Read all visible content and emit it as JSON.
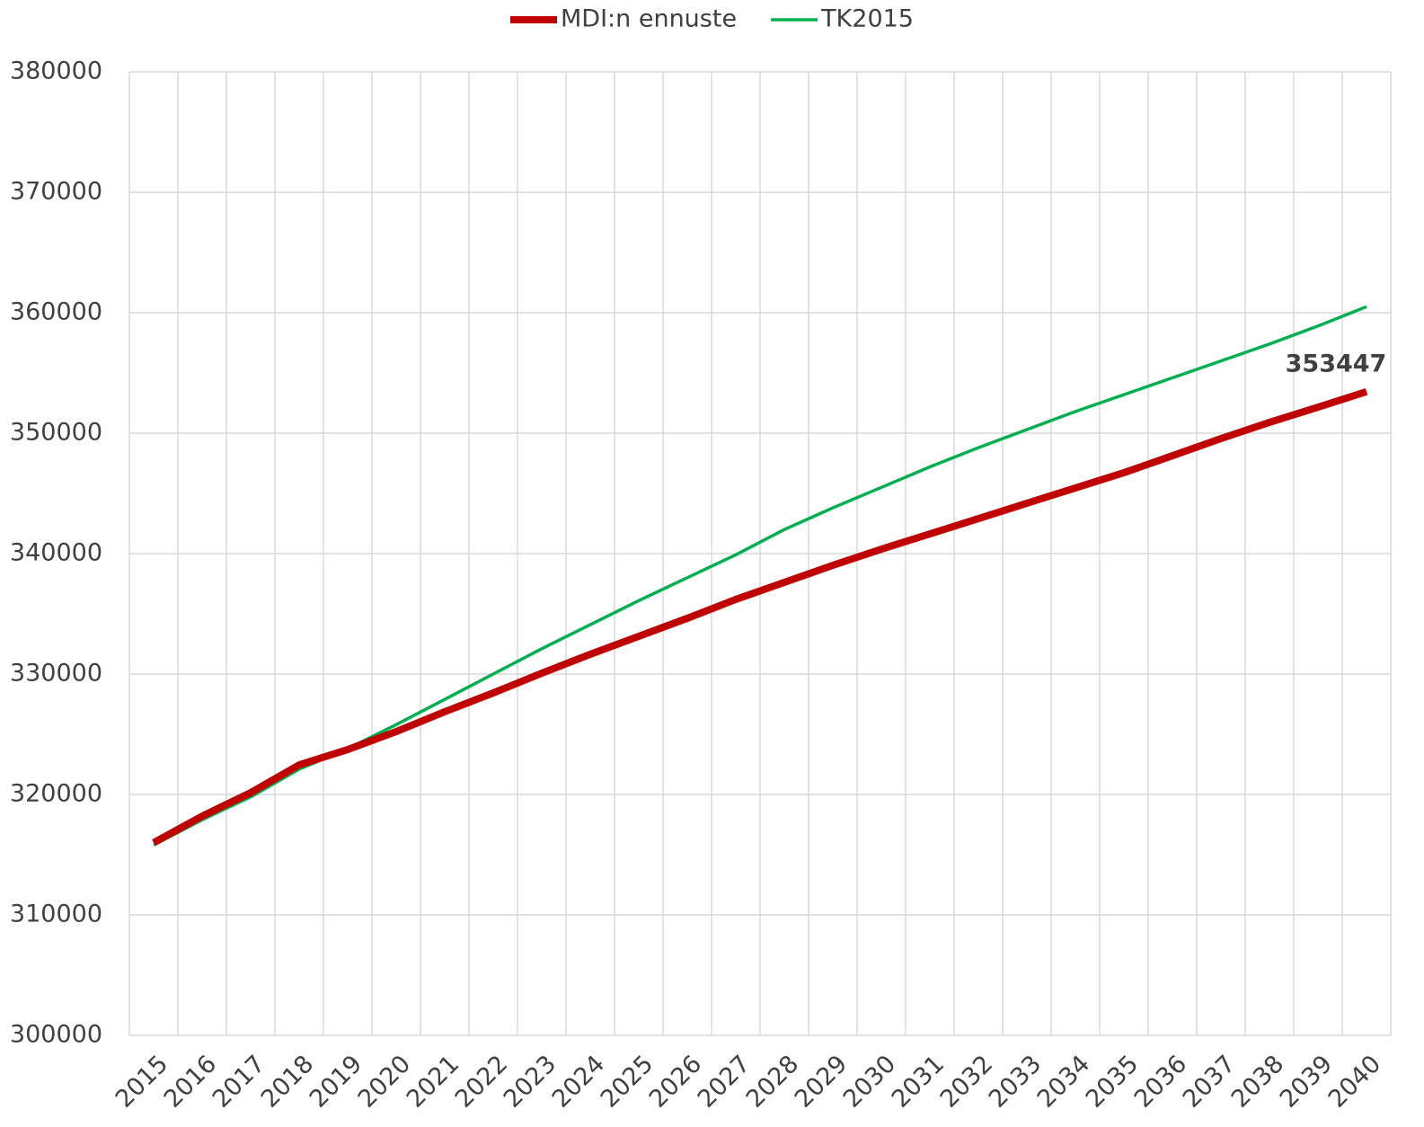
{
  "chart_data": {
    "type": "line",
    "categories": [
      "2015",
      "2016",
      "2017",
      "2018",
      "2019",
      "2020",
      "2021",
      "2022",
      "2023",
      "2024",
      "2025",
      "2026",
      "2027",
      "2028",
      "2029",
      "2030",
      "2031",
      "2032",
      "2033",
      "2034",
      "2035",
      "2036",
      "2037",
      "2038",
      "2039",
      "2040"
    ],
    "series": [
      {
        "name": "MDI:n ennuste",
        "color": "#c00000",
        "values": [
          316000,
          318200,
          320150,
          322460,
          323730,
          325220,
          326870,
          328430,
          330070,
          331640,
          333130,
          334630,
          336200,
          337610,
          339030,
          340370,
          341640,
          342910,
          344180,
          345450,
          346720,
          348130,
          349550,
          350900,
          352160,
          353447
        ]
      },
      {
        "name": "TK2015",
        "color": "#00b050",
        "values": [
          315800,
          317900,
          319800,
          322100,
          323800,
          325800,
          327900,
          330000,
          332100,
          334100,
          336100,
          338000,
          339900,
          342000,
          343800,
          345500,
          347200,
          348800,
          350300,
          351800,
          353200,
          354600,
          356000,
          357400,
          358900,
          360500
        ]
      }
    ],
    "value_labels": {
      "series": 0,
      "index": 25,
      "label": "353447"
    },
    "ylim": [
      300000,
      380000
    ],
    "yticks": [
      300000,
      310000,
      320000,
      330000,
      340000,
      350000,
      360000,
      370000,
      380000
    ],
    "grid": true,
    "legend": "top"
  }
}
